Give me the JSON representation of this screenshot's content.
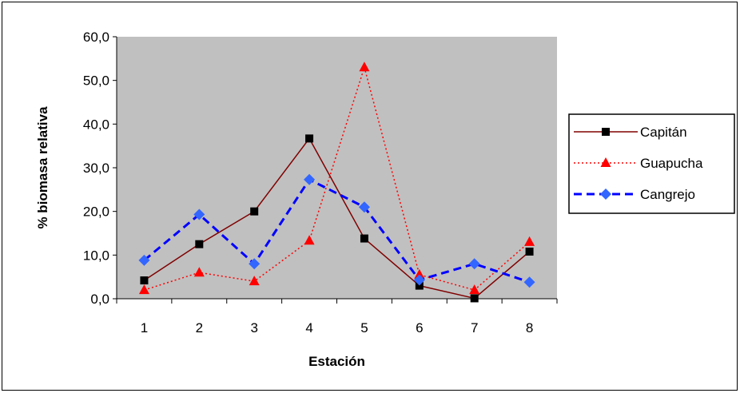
{
  "chart_data": {
    "type": "line",
    "title": "",
    "xlabel": "Estación",
    "ylabel": "% biomasa relativa",
    "categories": [
      "1",
      "2",
      "3",
      "4",
      "5",
      "6",
      "7",
      "8"
    ],
    "ylim": [
      0,
      60
    ],
    "yticks": [
      0,
      10,
      20,
      30,
      40,
      50,
      60
    ],
    "ytick_labels": [
      "0,0",
      "10,0",
      "20,0",
      "30,0",
      "40,0",
      "50,0",
      "60,0"
    ],
    "grid": false,
    "plot_background": "#c0c0c0",
    "legend_position": "right",
    "series": [
      {
        "name": "Capitán",
        "values": [
          4.2,
          12.5,
          20.0,
          36.7,
          13.8,
          3.0,
          0.1,
          10.8
        ],
        "color": "#800000",
        "line_style": "solid",
        "line_width": 1.5,
        "marker": "square",
        "marker_color": "#000000"
      },
      {
        "name": "Guapucha",
        "values": [
          2.0,
          6.0,
          4.0,
          13.3,
          53.0,
          5.5,
          2.0,
          13.0
        ],
        "color": "#ff0000",
        "line_style": "dotted",
        "line_width": 1.5,
        "marker": "triangle",
        "marker_color": "#ff0000"
      },
      {
        "name": "Cangrejo",
        "values": [
          8.8,
          19.3,
          8.0,
          27.3,
          21.0,
          4.3,
          8.0,
          3.8
        ],
        "color": "#0000ff",
        "line_style": "dashed",
        "line_width": 3,
        "marker": "diamond",
        "marker_color": "#3366ff"
      }
    ]
  }
}
